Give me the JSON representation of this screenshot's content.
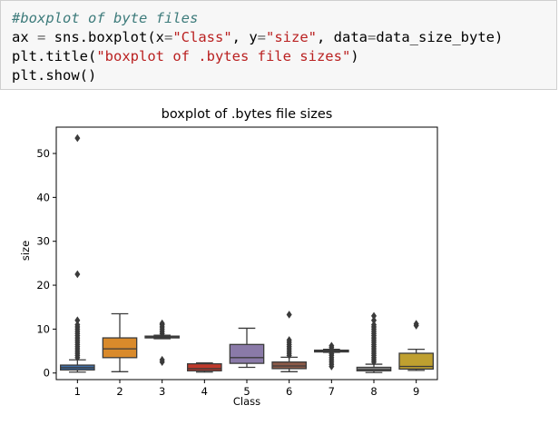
{
  "code_cell": {
    "lines": [
      {
        "parts": [
          {
            "t": "#boxplot of byte files",
            "c": "comment"
          }
        ]
      },
      {
        "parts": [
          {
            "t": "ax ",
            "c": ""
          },
          {
            "t": "=",
            "c": "op"
          },
          {
            "t": " sns.boxplot(x",
            "c": ""
          },
          {
            "t": "=",
            "c": "op"
          },
          {
            "t": "\"Class\"",
            "c": "string"
          },
          {
            "t": ", y",
            "c": ""
          },
          {
            "t": "=",
            "c": "op"
          },
          {
            "t": "\"size\"",
            "c": "string"
          },
          {
            "t": ", data",
            "c": ""
          },
          {
            "t": "=",
            "c": "op"
          },
          {
            "t": "data_size_byte)",
            "c": ""
          }
        ]
      },
      {
        "parts": [
          {
            "t": "plt.title(",
            "c": ""
          },
          {
            "t": "\"boxplot of .bytes file sizes\"",
            "c": "string"
          },
          {
            "t": ")",
            "c": ""
          }
        ]
      },
      {
        "parts": [
          {
            "t": "plt.show()",
            "c": ""
          }
        ]
      }
    ]
  },
  "chart_data": {
    "type": "box",
    "title": "boxplot of .bytes file sizes",
    "xlabel": "Class",
    "ylabel": "size",
    "ylim": [
      -1.5,
      56
    ],
    "yticks": [
      0,
      10,
      20,
      30,
      40,
      50
    ],
    "categories": [
      "1",
      "2",
      "3",
      "4",
      "5",
      "6",
      "7",
      "8",
      "9"
    ],
    "colors": [
      "#3f6ea8",
      "#d98a2b",
      "#4f9a4f",
      "#c0392b",
      "#8a7aa8",
      "#8c5a48",
      "#d88fc0",
      "#8c8c8c",
      "#bfa030"
    ],
    "boxes": [
      {
        "whislo": 0.2,
        "q1": 0.7,
        "med": 1.2,
        "q3": 1.8,
        "whishi": 3.0,
        "fliers": [
          3.5,
          4.0,
          4.5,
          5.0,
          5.5,
          6.0,
          6.5,
          7.0,
          7.5,
          8.0,
          8.5,
          9.0,
          9.5,
          10.0,
          10.5,
          11.0,
          12.0,
          22.5,
          53.5
        ]
      },
      {
        "whislo": 0.3,
        "q1": 3.5,
        "med": 5.5,
        "q3": 8.0,
        "whishi": 13.5,
        "fliers": []
      },
      {
        "whislo": 7.8,
        "q1": 8.0,
        "med": 8.2,
        "q3": 8.4,
        "whishi": 8.6,
        "fliers": [
          2.5,
          3.0,
          9.0,
          9.5,
          10.0,
          10.5,
          11.0,
          11.3
        ]
      },
      {
        "whislo": 0.2,
        "q1": 0.5,
        "med": 1.0,
        "q3": 2.1,
        "whishi": 2.3,
        "fliers": []
      },
      {
        "whislo": 1.3,
        "q1": 2.2,
        "med": 3.5,
        "q3": 6.5,
        "whishi": 10.2,
        "fliers": []
      },
      {
        "whislo": 0.3,
        "q1": 1.0,
        "med": 1.6,
        "q3": 2.5,
        "whishi": 3.6,
        "fliers": [
          4.0,
          4.5,
          5.0,
          5.5,
          6.0,
          6.5,
          7.0,
          7.5,
          13.3
        ]
      },
      {
        "whislo": 4.7,
        "q1": 4.8,
        "med": 5.0,
        "q3": 5.2,
        "whishi": 5.4,
        "fliers": [
          1.5,
          2.0,
          2.5,
          3.0,
          3.5,
          4.0,
          4.4,
          5.8,
          6.2
        ]
      },
      {
        "whislo": 0.1,
        "q1": 0.5,
        "med": 0.8,
        "q3": 1.3,
        "whishi": 2.0,
        "fliers": [
          2.5,
          3.0,
          3.5,
          4.0,
          4.5,
          5.0,
          5.5,
          6.0,
          6.5,
          7.0,
          7.5,
          8.0,
          8.5,
          9.0,
          9.5,
          10.0,
          10.5,
          11.0,
          12.0,
          13.0
        ]
      },
      {
        "whislo": 0.6,
        "q1": 0.9,
        "med": 1.5,
        "q3": 4.5,
        "whishi": 5.4,
        "fliers": [
          10.8,
          11.2
        ]
      }
    ]
  }
}
